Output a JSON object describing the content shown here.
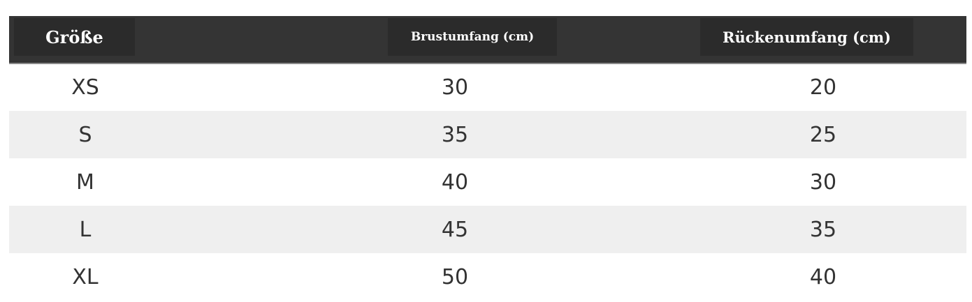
{
  "table": {
    "headers": [
      "Größe",
      "Brustumfang (cm)",
      "Rückenumfang (cm)"
    ],
    "rows": [
      [
        "XS",
        "30",
        "20"
      ],
      [
        "S",
        "35",
        "25"
      ],
      [
        "M",
        "40",
        "30"
      ],
      [
        "L",
        "45",
        "35"
      ],
      [
        "XL",
        "50",
        "40"
      ]
    ]
  }
}
